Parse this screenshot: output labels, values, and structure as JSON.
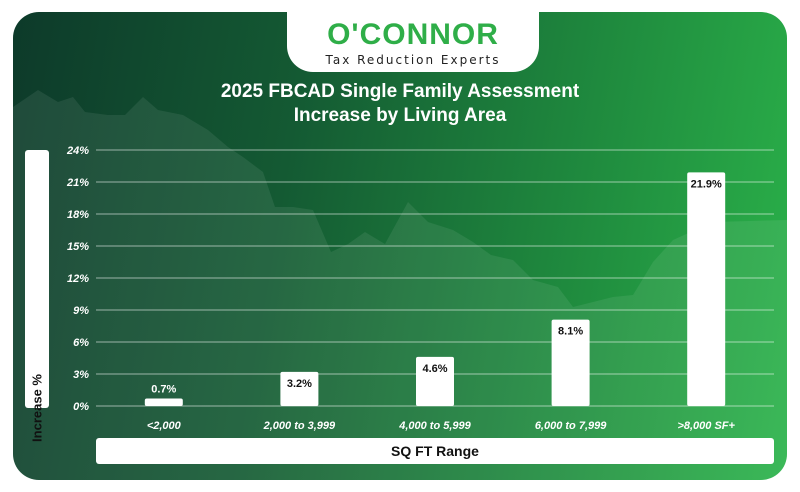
{
  "logo": {
    "name": "O'CONNOR",
    "tagline": "Tax Reduction Experts"
  },
  "colors": {
    "accent": "#2fae48",
    "bar": "#ffffff",
    "background_dark": "#0d3a2a",
    "background_light": "#2bb34a"
  },
  "chart_data": {
    "type": "bar",
    "title_line1": "2025 FBCAD Single Family Assessment",
    "title_line2": "Increase by Living Area",
    "xlabel": "SQ FT Range",
    "ylabel": "Increase %",
    "categories": [
      "<2,000",
      "2,000 to 3,999",
      "4,000 to 5,999",
      "6,000 to 7,999",
      ">8,000 SF+"
    ],
    "values": [
      0.7,
      3.2,
      4.6,
      8.1,
      21.9
    ],
    "value_labels": [
      "0.7%",
      "3.2%",
      "4.6%",
      "8.1%",
      "21.9%"
    ],
    "yticks": [
      0,
      3,
      6,
      9,
      12,
      15,
      18,
      21,
      24
    ],
    "ytick_labels": [
      "0%",
      "3%",
      "6%",
      "9%",
      "12%",
      "15%",
      "18%",
      "21%",
      "24%"
    ],
    "ylim": [
      0,
      24
    ],
    "grid": true
  }
}
